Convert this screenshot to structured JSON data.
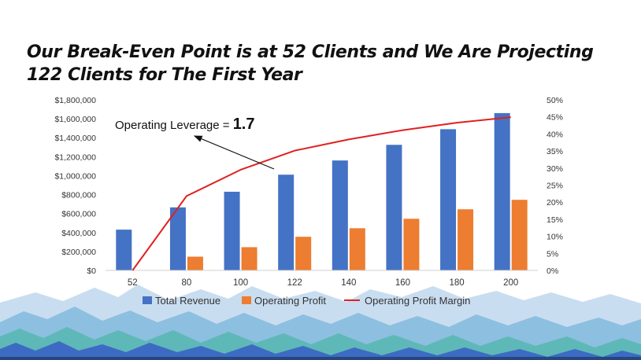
{
  "title": {
    "line1": "Our Break-Even Point is at 52 Clients and We Are Projecting",
    "line2": "122 Clients for The First Year"
  },
  "chart_data": {
    "type": "bar",
    "categories": [
      "52",
      "80",
      "100",
      "122",
      "140",
      "160",
      "180",
      "200"
    ],
    "series": [
      {
        "name": "Total Revenue",
        "type": "bar",
        "axis": "left",
        "color": "#4472C4",
        "values": [
          430000,
          665000,
          830000,
          1010000,
          1160000,
          1325000,
          1490000,
          1660000
        ]
      },
      {
        "name": "Operating Profit",
        "type": "bar",
        "axis": "left",
        "color": "#ED7D31",
        "values": [
          0,
          145000,
          245000,
          355000,
          445000,
          545000,
          645000,
          745000
        ]
      },
      {
        "name": "Operating Profit Margin",
        "type": "line",
        "axis": "right",
        "color": "#E02020",
        "values": [
          0,
          21.8,
          29.5,
          35.1,
          38.4,
          41.1,
          43.3,
          44.9
        ]
      }
    ],
    "y_left": {
      "min": 0,
      "max": 1800000,
      "step": 200000,
      "tick_labels": [
        "$0",
        "$200,000",
        "$400,000",
        "$600,000",
        "$800,000",
        "$1,000,000",
        "$1,200,000",
        "$1,400,000",
        "$1,600,000",
        "$1,800,000"
      ]
    },
    "y_right": {
      "min": 0,
      "max": 50,
      "step": 5,
      "tick_labels": [
        "0%",
        "5%",
        "10%",
        "15%",
        "20%",
        "25%",
        "30%",
        "35%",
        "40%",
        "45%",
        "50%"
      ]
    },
    "legend": {
      "position": "bottom",
      "items": [
        "Total Revenue",
        "Operating Profit",
        "Operating Profit Margin"
      ]
    },
    "annotation": {
      "label": "Operating Leverage = ",
      "value": "1.7"
    }
  },
  "colors": {
    "revenue": "#4472C4",
    "profit": "#ED7D31",
    "margin": "#E02020",
    "mountain_back": "#C9DDF0",
    "mountain_mid": "#8DBFE0",
    "mountain_teal": "#5FB8B8",
    "mountain_front": "#3D6BC4",
    "mountain_dark": "#27467E"
  }
}
